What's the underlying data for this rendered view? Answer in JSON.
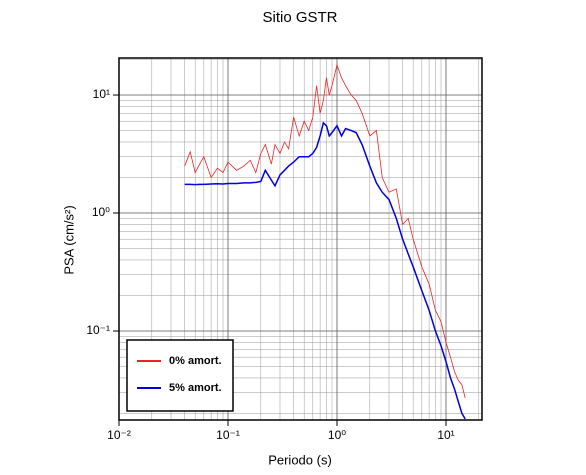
{
  "chart_data": {
    "type": "line",
    "title": "Sitio GSTR",
    "xlabel": "Periodo (s)",
    "ylabel": "PSA (cm/s²)",
    "x": [
      0.04,
      0.045,
      0.05,
      0.055,
      0.06,
      0.07,
      0.08,
      0.09,
      0.1,
      0.12,
      0.14,
      0.16,
      0.18,
      0.2,
      0.22,
      0.25,
      0.27,
      0.3,
      0.33,
      0.36,
      0.4,
      0.45,
      0.5,
      0.55,
      0.6,
      0.65,
      0.7,
      0.75,
      0.8,
      0.85,
      0.9,
      1.0,
      1.1,
      1.2,
      1.35,
      1.5,
      1.7,
      2.0,
      2.3,
      2.6,
      3.0,
      3.5,
      4.0,
      4.5,
      5.0,
      6.0,
      7.0,
      8.0,
      9.0,
      10,
      11,
      12,
      13,
      14,
      15
    ],
    "series": [
      {
        "name": "0% amort.",
        "color": "#ee2222",
        "width": 0.8,
        "values": [
          2.5,
          3.3,
          2.2,
          2.6,
          3.0,
          2.0,
          2.4,
          2.2,
          2.7,
          2.3,
          2.5,
          2.8,
          2.2,
          3.2,
          3.8,
          2.6,
          3.8,
          3.2,
          4.0,
          3.5,
          6.5,
          4.5,
          6.0,
          5.0,
          6.5,
          12,
          7,
          9,
          14,
          10,
          12,
          18,
          14,
          12,
          10,
          9,
          7,
          4.5,
          5.0,
          2.0,
          1.5,
          1.6,
          0.8,
          0.9,
          0.6,
          0.35,
          0.25,
          0.15,
          0.12,
          0.08,
          0.06,
          0.045,
          0.038,
          0.035,
          0.027
        ]
      },
      {
        "name": "5% amort.",
        "color": "#0000dd",
        "width": 1.5,
        "values": [
          1.75,
          1.75,
          1.74,
          1.75,
          1.75,
          1.76,
          1.77,
          1.76,
          1.78,
          1.78,
          1.8,
          1.8,
          1.82,
          1.85,
          2.3,
          1.9,
          1.7,
          2.1,
          2.3,
          2.5,
          2.7,
          3.0,
          3.0,
          3.0,
          3.2,
          3.6,
          4.5,
          5.8,
          5.5,
          4.5,
          4.8,
          5.5,
          4.5,
          5.2,
          5.0,
          4.8,
          3.8,
          2.5,
          1.8,
          1.5,
          1.3,
          0.9,
          0.6,
          0.45,
          0.35,
          0.22,
          0.15,
          0.1,
          0.075,
          0.055,
          0.04,
          0.032,
          0.025,
          0.02,
          0.018
        ]
      }
    ],
    "xlog": true,
    "ylog": true,
    "xlim": [
      0.01,
      21.4
    ],
    "ylim": [
      0.0176,
      20.6
    ],
    "xticks": [
      {
        "value": 0.01,
        "label": "10⁻²"
      },
      {
        "value": 0.1,
        "label": "10⁻¹"
      },
      {
        "value": 1,
        "label": "10⁰"
      },
      {
        "value": 10,
        "label": "10¹"
      }
    ],
    "yticks": [
      {
        "value": 0.1,
        "label": "10⁻¹"
      },
      {
        "value": 1,
        "label": "10⁰"
      },
      {
        "value": 10,
        "label": "10¹"
      }
    ],
    "grid": true,
    "legend": "lower left"
  }
}
